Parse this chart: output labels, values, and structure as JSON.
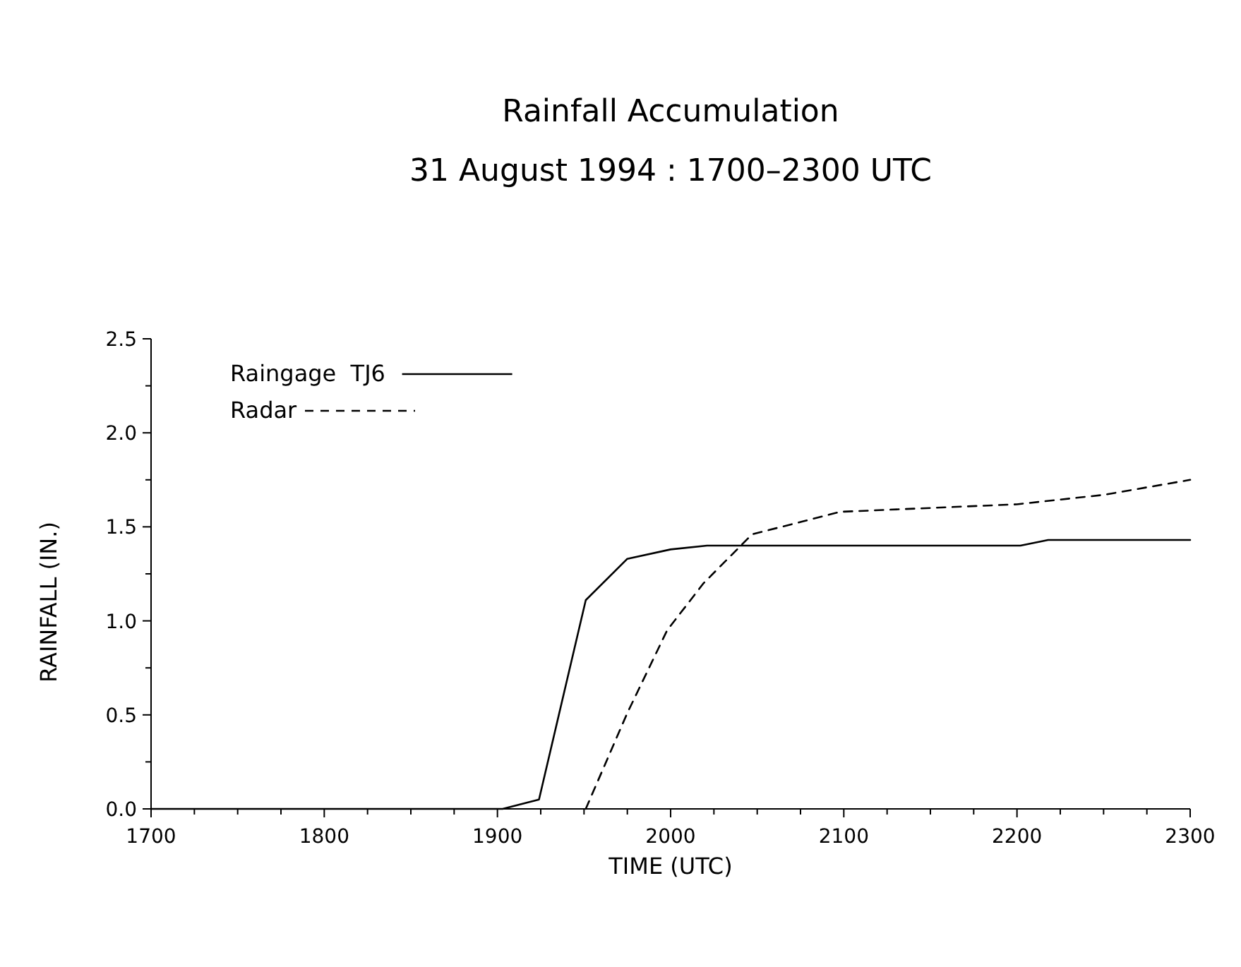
{
  "chart_data": {
    "type": "line",
    "title": "Rainfall Accumulation",
    "subtitle": "31 August 1994 : 1700–2300 UTC",
    "xlabel": "TIME (UTC)",
    "ylabel": "RAINFALL (IN.)",
    "xlim": [
      1700,
      2300
    ],
    "xticks": [
      1700,
      {
        "value": 1725,
        "label": null
      },
      {
        "value": 1750,
        "label": null
      },
      {
        "value": 1775,
        "label": null
      },
      1800,
      {
        "value": 1825,
        "label": null
      },
      {
        "value": 1850,
        "label": null
      },
      {
        "value": 1875,
        "label": null
      },
      1900,
      {
        "value": 1925,
        "label": null
      },
      {
        "value": 1950,
        "label": null
      },
      {
        "value": 1975,
        "label": null
      },
      2000,
      {
        "value": 2025,
        "label": null
      },
      {
        "value": 2050,
        "label": null
      },
      {
        "value": 2075,
        "label": null
      },
      2100,
      {
        "value": 2125,
        "label": null
      },
      {
        "value": 2150,
        "label": null
      },
      {
        "value": 2175,
        "label": null
      },
      2200,
      {
        "value": 2225,
        "label": null
      },
      {
        "value": 2250,
        "label": null
      },
      {
        "value": 2275,
        "label": null
      },
      2300
    ],
    "ylim": [
      0,
      2.5
    ],
    "yticks": [
      {
        "value": 0,
        "label": "0.0"
      },
      {
        "value": 0.25,
        "label": null
      },
      {
        "value": 0.5,
        "label": "0.5"
      },
      {
        "value": 0.75,
        "label": null
      },
      {
        "value": 1,
        "label": "1.0"
      },
      {
        "value": 1.25,
        "label": null
      },
      {
        "value": 1.5,
        "label": "1.5"
      },
      {
        "value": 1.75,
        "label": null
      },
      {
        "value": 2,
        "label": "2.0"
      },
      {
        "value": 2.25,
        "label": null
      },
      {
        "value": 2.5,
        "label": "2.5"
      }
    ],
    "grid": false,
    "legend": "top left",
    "marker": "none",
    "series": [
      {
        "name": "Raingage  TJ6",
        "color": "#000000",
        "line_style": "solid",
        "x": [
          1700,
          1903,
          1924,
          1951,
          1975,
          2000,
          2021,
          2202,
          2218,
          2300
        ],
        "values": [
          0,
          0,
          0.05,
          1.11,
          1.33,
          1.38,
          1.4,
          1.4,
          1.43,
          1.43
        ]
      },
      {
        "name": "Radar",
        "color": "#000000",
        "line_style": "dashed",
        "x": [
          1951,
          1975,
          1998,
          2019,
          2047,
          2098,
          2200,
          2250,
          2300
        ],
        "values": [
          0,
          0.51,
          0.95,
          1.2,
          1.46,
          1.58,
          1.62,
          1.67,
          1.75
        ]
      }
    ]
  }
}
